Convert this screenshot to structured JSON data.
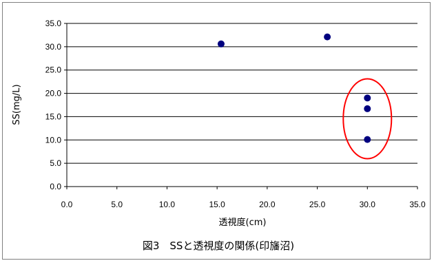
{
  "chart_data": {
    "type": "scatter",
    "title": "図3　SSと透視度の関係(印旛沼)",
    "xlabel": "透視度(cm)",
    "ylabel": "SS(mg/L)",
    "xlim": [
      0,
      35
    ],
    "ylim": [
      0,
      35
    ],
    "x_ticks": [
      "0.0",
      "5.0",
      "10.0",
      "15.0",
      "20.0",
      "25.0",
      "30.0",
      "35.0"
    ],
    "y_ticks": [
      "0.0",
      "5.0",
      "10.0",
      "15.0",
      "20.0",
      "25.0",
      "30.0",
      "35.0"
    ],
    "grid": "horizontal",
    "legend": "none",
    "series": [
      {
        "points": [
          {
            "x": 15.4,
            "y": 30.6
          },
          {
            "x": 26.0,
            "y": 32.1
          },
          {
            "x": 30.0,
            "y": 19.0
          },
          {
            "x": 30.0,
            "y": 16.7
          },
          {
            "x": 30.0,
            "y": 10.1
          }
        ]
      }
    ],
    "marker_color": "#00007f",
    "highlight_color": "#ff0000"
  }
}
